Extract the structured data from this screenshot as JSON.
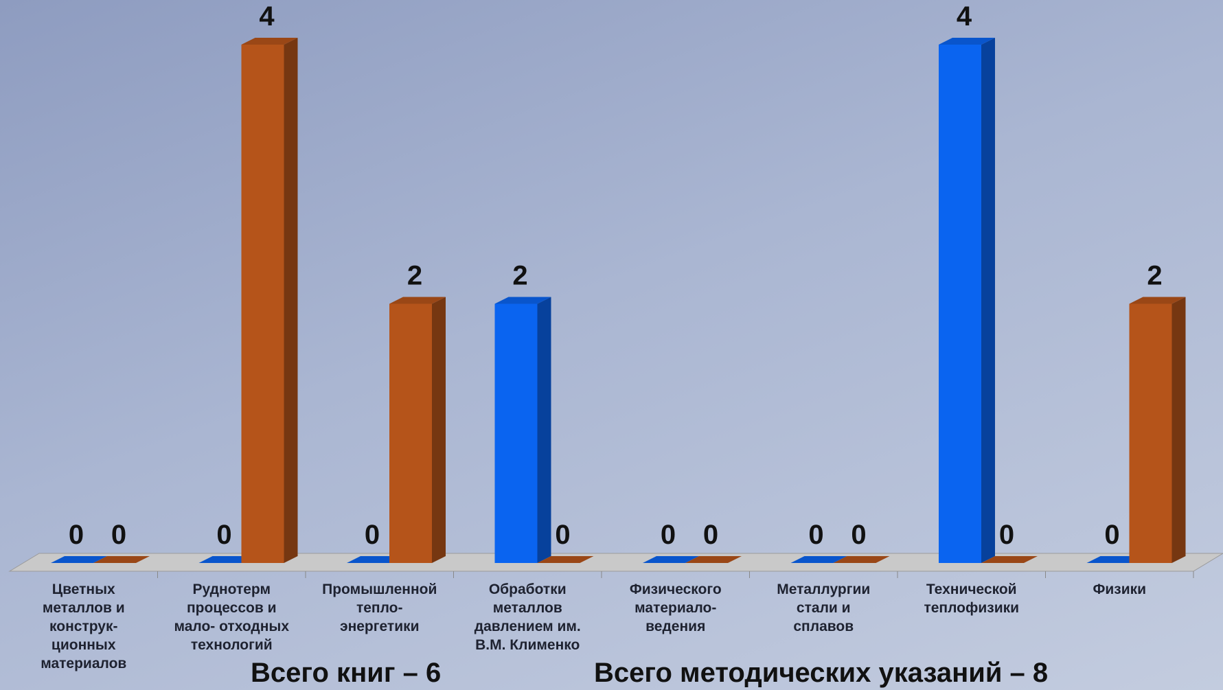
{
  "chart_data": {
    "type": "bar3d",
    "categories": [
      "Цветных\nметаллов и\nконструк-\nционных\nматериалов",
      "Руднотерм\nпроцессов и\nмало- отходных\nтехнологий",
      "Промышленной\nтепло-\nэнергетики",
      "Обработки\nметаллов\nдавлением им.\nВ.М. Клименко",
      "Физического\nматериало-\nведения",
      "Металлургии\nстали и\nсплавов",
      "Технической\nтеплофизики",
      "Физики"
    ],
    "series": [
      {
        "color": "#0a64f0",
        "values": [
          0,
          0,
          0,
          2,
          0,
          0,
          4,
          0
        ]
      },
      {
        "color": "#b5541a",
        "values": [
          0,
          4,
          2,
          0,
          0,
          0,
          0,
          2
        ]
      }
    ],
    "annotations": [
      "Всего книг – 6",
      "Всего методических указаний – 8"
    ]
  }
}
